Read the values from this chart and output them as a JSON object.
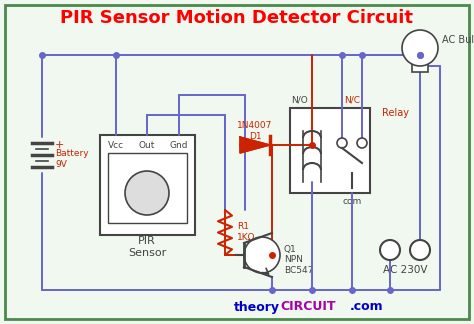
{
  "title": "PIR Sensor Motion Detector Circuit",
  "title_color": "#ff0000",
  "title_fontsize": 13,
  "bg_color": "#f0f8f0",
  "border_color": "#4a8a4a",
  "blue": "#6666cc",
  "red": "#cc2200",
  "dark": "#444444",
  "watermark_blue": "#0000cc",
  "watermark_purple": "#aa00aa",
  "labels": {
    "battery": "Battery\n9V",
    "pir": "PIR\nSensor",
    "vcc": "Vcc",
    "out": "Out",
    "gnd": "Gnd",
    "diode": "1N4007\nD1",
    "resistor": "R1\n1KΩ",
    "transistor": "Q1\nNPN\nBC547",
    "relay": "Relay",
    "no": "N/O",
    "nc": "N/C",
    "com": "com",
    "ac_bulb": "AC Bulb",
    "ac_voltage": "AC 230V"
  }
}
